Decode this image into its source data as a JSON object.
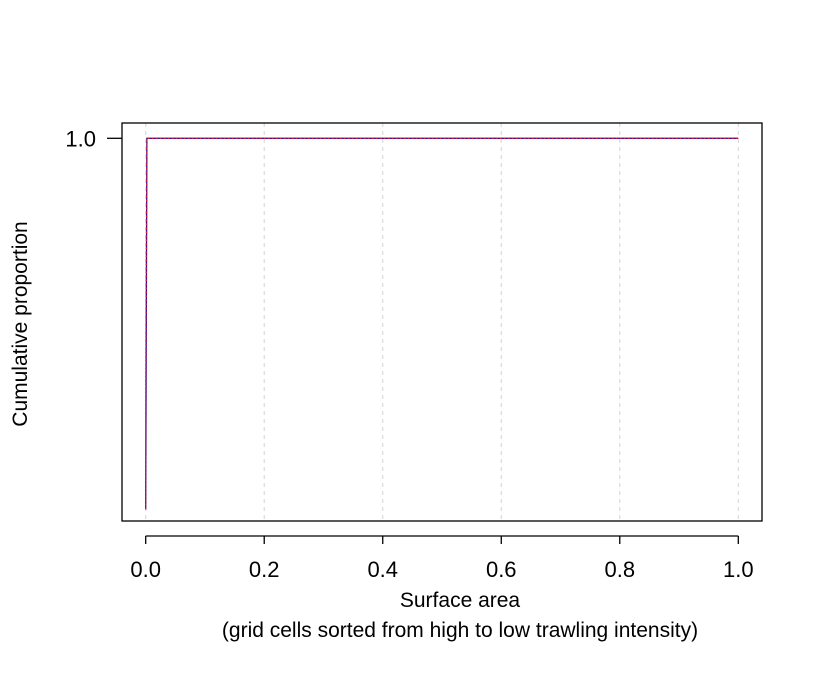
{
  "chart_data": {
    "type": "line",
    "title": "",
    "xlabel": "Surface area",
    "xlabel_line2": "(grid cells sorted from high to low trawling intensity)",
    "ylabel": "Cumulative proportion",
    "xlim": [
      -0.04,
      1.04
    ],
    "ylim": [
      0,
      1.04
    ],
    "x_ticks": [
      0.0,
      0.2,
      0.4,
      0.6,
      0.8,
      1.0
    ],
    "x_tick_labels": [
      "0.0",
      "0.2",
      "0.4",
      "0.6",
      "0.8",
      "1.0"
    ],
    "y_ticks": [
      1.0
    ],
    "y_tick_labels": [
      "1.0"
    ],
    "grid": "vertical dashed at x ticks",
    "legend": "none",
    "series": [
      {
        "style": "solid",
        "color": "#3a0a8a",
        "points": [
          [
            0.0,
            0.03
          ],
          [
            0.002,
            1.0
          ],
          [
            1.0,
            1.0
          ]
        ]
      },
      {
        "style": "dotted",
        "color": "#cc1f3a",
        "points": [
          [
            0.0,
            0.03
          ],
          [
            0.0,
            0.35
          ],
          [
            0.002,
            1.0
          ],
          [
            1.0,
            1.0
          ]
        ]
      }
    ]
  }
}
